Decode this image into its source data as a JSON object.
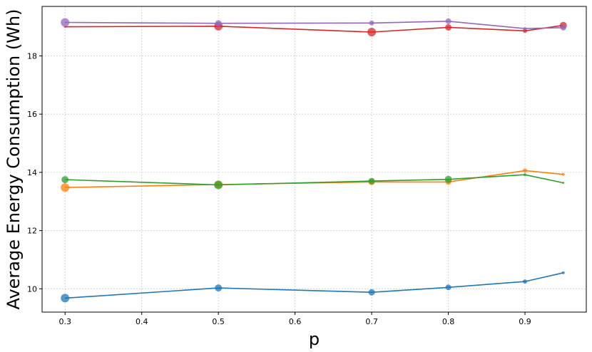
{
  "chart_data": {
    "type": "line",
    "title": "",
    "xlabel": "p",
    "ylabel": "Average Energy Consumption (Wh)",
    "xlim": [
      0.27,
      0.98
    ],
    "ylim": [
      9.2,
      19.7
    ],
    "xticks": [
      "0.3",
      "0.4",
      "0.5",
      "0.6",
      "0.7",
      "0.8",
      "0.9"
    ],
    "yticks": [
      "10",
      "12",
      "14",
      "16",
      "18"
    ],
    "grid": true,
    "legend": "none",
    "x": [
      0.3,
      0.5,
      0.7,
      0.8,
      0.9,
      0.95
    ],
    "series": [
      {
        "color": "#1f77b4",
        "values": [
          9.68,
          10.03,
          9.88,
          10.05,
          10.25,
          10.55
        ],
        "marker_sizes": [
          12,
          10,
          9,
          8,
          6,
          4
        ]
      },
      {
        "color": "#ff7f0e",
        "values": [
          13.48,
          13.58,
          13.67,
          13.67,
          14.06,
          13.93
        ],
        "marker_sizes": [
          12,
          11,
          9,
          8,
          6,
          4
        ]
      },
      {
        "color": "#2ca02c",
        "values": [
          13.75,
          13.57,
          13.7,
          13.76,
          13.92,
          13.64
        ],
        "marker_sizes": [
          10,
          12,
          9,
          10,
          4,
          3
        ]
      },
      {
        "color": "#d62728",
        "values": [
          19.0,
          19.02,
          18.82,
          18.98,
          18.86,
          19.05
        ],
        "marker_sizes": [
          3,
          12,
          12,
          9,
          6,
          10
        ]
      },
      {
        "color": "#9467bd",
        "values": [
          19.15,
          19.12,
          19.13,
          19.19,
          18.94,
          18.97
        ],
        "marker_sizes": [
          12,
          9,
          7,
          8,
          4,
          8
        ]
      }
    ]
  }
}
